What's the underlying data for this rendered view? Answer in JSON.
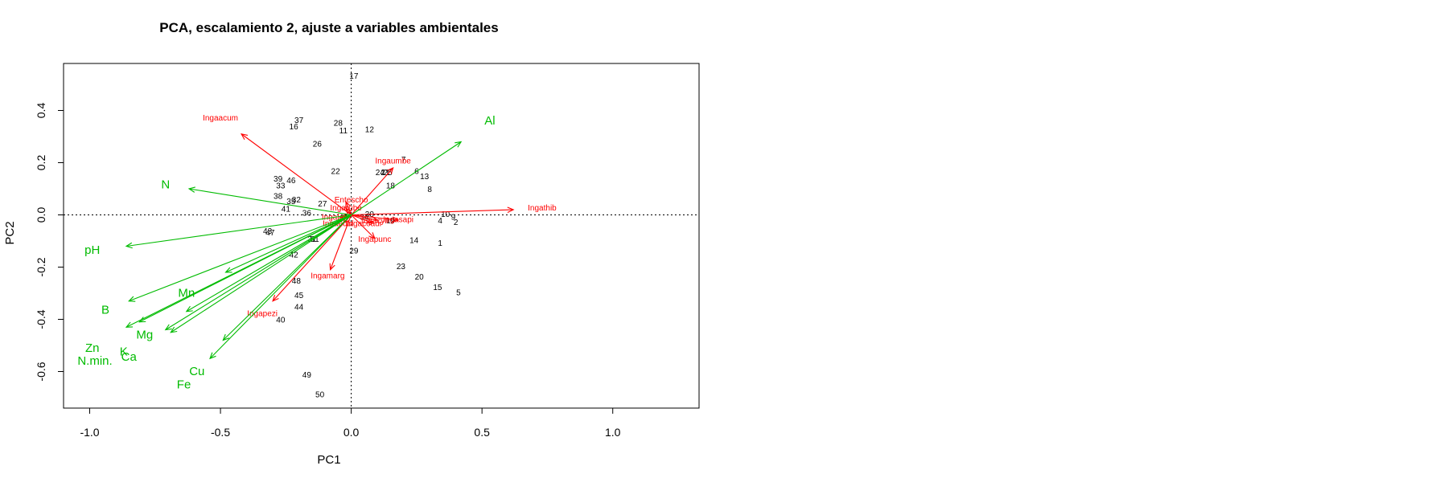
{
  "chart_data": {
    "type": "scatter",
    "title": "PCA, escalamiento 2, ajuste a variables ambientales",
    "xlabel": "PC1",
    "ylabel": "PC2",
    "xlim": [
      -1.1,
      1.33
    ],
    "ylim": [
      -0.74,
      0.58
    ],
    "xticks": [
      -1.0,
      -0.5,
      0.0,
      0.5,
      1.0
    ],
    "xtick_labels": [
      "-1.0",
      "-0.5",
      "0.0",
      "0.5",
      "1.0"
    ],
    "yticks": [
      -0.6,
      -0.4,
      -0.2,
      0.0,
      0.2,
      0.4
    ],
    "ytick_labels": [
      "-0.6",
      "-0.4",
      "-0.2",
      "0.0",
      "0.2",
      "0.4"
    ],
    "colors": {
      "sites": "#000000",
      "species": "#ff0000",
      "env": "#00bb00",
      "axes": "#000000"
    },
    "sites": [
      {
        "label": "1",
        "x": 0.34,
        "y": -0.11
      },
      {
        "label": "2",
        "x": 0.4,
        "y": -0.03
      },
      {
        "label": "4",
        "x": 0.34,
        "y": -0.025
      },
      {
        "label": "5",
        "x": 0.41,
        "y": -0.3
      },
      {
        "label": "6",
        "x": 0.25,
        "y": 0.165
      },
      {
        "label": "7",
        "x": 0.2,
        "y": 0.21
      },
      {
        "label": "8",
        "x": 0.3,
        "y": 0.095
      },
      {
        "label": "9",
        "x": 0.39,
        "y": -0.01
      },
      {
        "label": "10",
        "x": 0.36,
        "y": 0.0
      },
      {
        "label": "11",
        "x": -0.03,
        "y": 0.32
      },
      {
        "label": "12",
        "x": 0.07,
        "y": 0.325
      },
      {
        "label": "13",
        "x": 0.28,
        "y": 0.145
      },
      {
        "label": "14",
        "x": 0.24,
        "y": -0.1
      },
      {
        "label": "15",
        "x": 0.33,
        "y": -0.28
      },
      {
        "label": "16",
        "x": -0.22,
        "y": 0.335
      },
      {
        "label": "17",
        "x": 0.01,
        "y": 0.53
      },
      {
        "label": "18",
        "x": 0.15,
        "y": 0.11
      },
      {
        "label": "19",
        "x": 0.15,
        "y": -0.025
      },
      {
        "label": "20",
        "x": 0.26,
        "y": -0.24
      },
      {
        "label": "21",
        "x": 0.13,
        "y": 0.16
      },
      {
        "label": "22",
        "x": -0.06,
        "y": 0.165
      },
      {
        "label": "23",
        "x": 0.19,
        "y": -0.2
      },
      {
        "label": "24",
        "x": 0.11,
        "y": 0.16
      },
      {
        "label": "25",
        "x": 0.14,
        "y": 0.16
      },
      {
        "label": "26",
        "x": -0.13,
        "y": 0.27
      },
      {
        "label": "27",
        "x": -0.11,
        "y": 0.04
      },
      {
        "label": "28",
        "x": -0.05,
        "y": 0.35
      },
      {
        "label": "29",
        "x": 0.01,
        "y": -0.14
      },
      {
        "label": "30",
        "x": 0.07,
        "y": 0.0
      },
      {
        "label": "31",
        "x": -0.15,
        "y": -0.095
      },
      {
        "label": "32",
        "x": -0.21,
        "y": 0.055
      },
      {
        "label": "33",
        "x": -0.27,
        "y": 0.11
      },
      {
        "label": "34",
        "x": 0.05,
        "y": -0.01
      },
      {
        "label": "35",
        "x": -0.23,
        "y": 0.05
      },
      {
        "label": "36",
        "x": -0.17,
        "y": 0.005
      },
      {
        "label": "37",
        "x": -0.2,
        "y": 0.36
      },
      {
        "label": "38",
        "x": -0.28,
        "y": 0.07
      },
      {
        "label": "39",
        "x": -0.28,
        "y": 0.135
      },
      {
        "label": "40",
        "x": -0.27,
        "y": -0.405
      },
      {
        "label": "41",
        "x": -0.25,
        "y": 0.02
      },
      {
        "label": "42",
        "x": -0.22,
        "y": -0.155
      },
      {
        "label": "43",
        "x": -0.32,
        "y": -0.065
      },
      {
        "label": "44",
        "x": -0.2,
        "y": -0.355
      },
      {
        "label": "45",
        "x": -0.2,
        "y": -0.31
      },
      {
        "label": "46",
        "x": -0.23,
        "y": 0.13
      },
      {
        "label": "47",
        "x": -0.31,
        "y": -0.07
      },
      {
        "label": "48",
        "x": -0.21,
        "y": -0.255
      },
      {
        "label": "49",
        "x": -0.17,
        "y": -0.615
      },
      {
        "label": "50",
        "x": -0.12,
        "y": -0.69
      },
      {
        "label": "51",
        "x": -0.14,
        "y": -0.095
      }
    ],
    "species": [
      {
        "label": "Ingaacum",
        "x": -0.42,
        "y": 0.31,
        "lx": -0.5,
        "ly": 0.37
      },
      {
        "label": "Ingaumbe",
        "x": 0.16,
        "y": 0.18,
        "lx": 0.16,
        "ly": 0.205
      },
      {
        "label": "Ingathib",
        "x": 0.62,
        "y": 0.02,
        "lx": 0.73,
        "ly": 0.025
      },
      {
        "label": "Ingapunc",
        "x": 0.09,
        "y": -0.09,
        "lx": 0.09,
        "ly": -0.095
      },
      {
        "label": "Ingamarg",
        "x": -0.08,
        "y": -0.21,
        "lx": -0.09,
        "ly": -0.235
      },
      {
        "label": "Ingapezi",
        "x": -0.3,
        "y": -0.33,
        "lx": -0.34,
        "ly": -0.38
      },
      {
        "label": "Entescho",
        "x": -0.02,
        "y": 0.05,
        "lx": 0.0,
        "ly": 0.055
      },
      {
        "label": "Ingasapi",
        "x": 0.18,
        "y": -0.02,
        "lx": 0.18,
        "ly": -0.02
      },
      {
        "label": "Ingacoadr",
        "x": 0.08,
        "y": -0.03,
        "lx": 0.05,
        "ly": -0.035
      },
      {
        "label": "Ingaleiv",
        "x": -0.04,
        "y": -0.01,
        "lx": -0.06,
        "ly": -0.01
      },
      {
        "label": "Ingarube",
        "x": -0.02,
        "y": 0.025,
        "lx": -0.02,
        "ly": 0.025
      },
      {
        "label": "Ingaedul",
        "x": -0.03,
        "y": -0.03,
        "lx": -0.05,
        "ly": -0.035
      },
      {
        "label": "Ingacyli",
        "x": 0.1,
        "y": -0.02,
        "lx": 0.09,
        "ly": -0.025
      }
    ],
    "env": [
      {
        "label": "Al",
        "x": 0.42,
        "y": 0.28,
        "lx": 0.53,
        "ly": 0.36
      },
      {
        "label": "N",
        "x": -0.62,
        "y": 0.1,
        "lx": -0.71,
        "ly": 0.115
      },
      {
        "label": "pH",
        "x": -0.86,
        "y": -0.12,
        "lx": -0.99,
        "ly": -0.135
      },
      {
        "label": "Mn",
        "x": -0.48,
        "y": -0.22,
        "lx": -0.63,
        "ly": -0.3
      },
      {
        "label": "B",
        "x": -0.85,
        "y": -0.33,
        "lx": -0.94,
        "ly": -0.365
      },
      {
        "label": "Mg",
        "x": -0.63,
        "y": -0.37,
        "lx": -0.79,
        "ly": -0.46
      },
      {
        "label": "Zn",
        "x": -0.86,
        "y": -0.43,
        "lx": -0.99,
        "ly": -0.51
      },
      {
        "label": "K",
        "x": -0.71,
        "y": -0.44,
        "lx": -0.87,
        "ly": -0.525
      },
      {
        "label": "Ca",
        "x": -0.69,
        "y": -0.45,
        "lx": -0.85,
        "ly": -0.545
      },
      {
        "label": "N.min.",
        "x": -0.81,
        "y": -0.41,
        "lx": -0.98,
        "ly": -0.56
      },
      {
        "label": "Cu",
        "x": -0.49,
        "y": -0.48,
        "lx": -0.59,
        "ly": -0.6
      },
      {
        "label": "Fe",
        "x": -0.54,
        "y": -0.55,
        "lx": -0.64,
        "ly": -0.65
      }
    ]
  }
}
